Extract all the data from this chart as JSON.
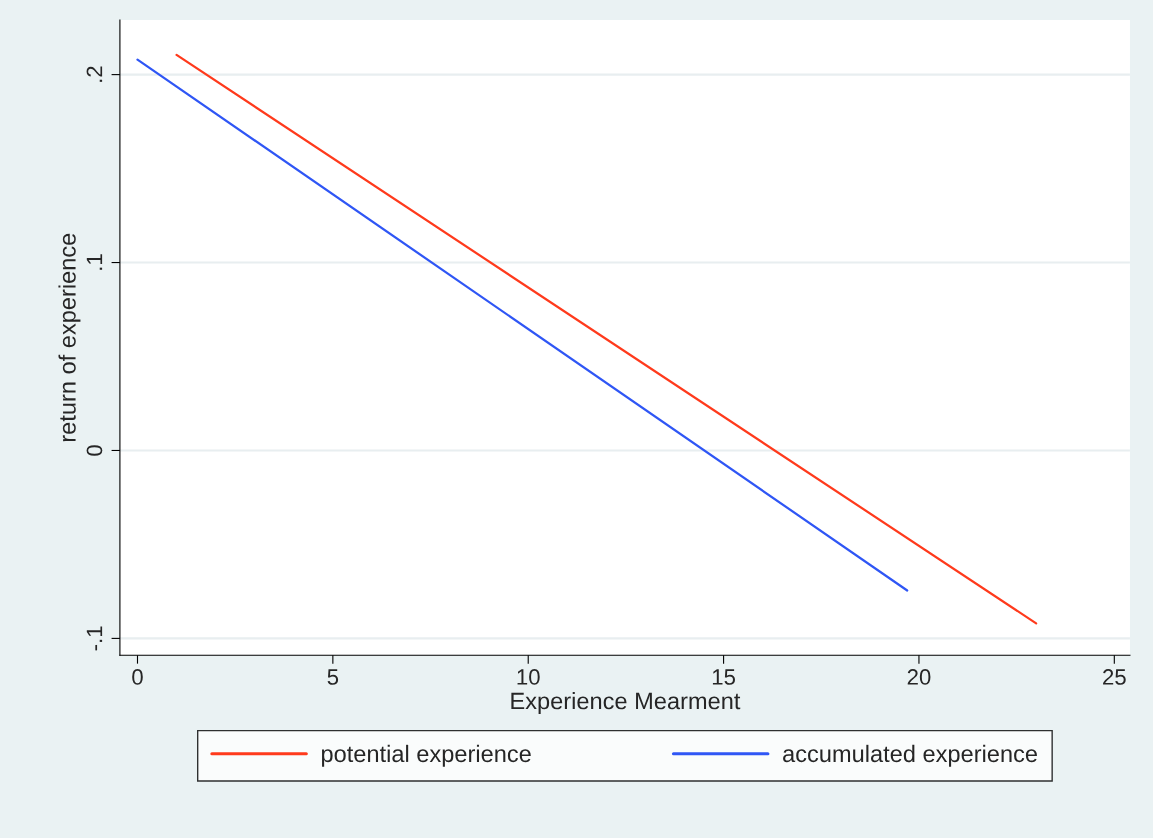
{
  "chart_data": {
    "type": "line",
    "xlabel": "Experience Mearment",
    "ylabel": "return of experience",
    "series": [
      {
        "name": "potential experience",
        "color": "#ff3a1c",
        "x": [
          1,
          23
        ],
        "values": [
          0.2105,
          -0.092
        ]
      },
      {
        "name": "accumulated experience",
        "color": "#2f56f5",
        "x": [
          0,
          19.7
        ],
        "values": [
          0.208,
          -0.0745
        ]
      }
    ],
    "xlim": [
      -0.45,
      25.4
    ],
    "ylim": [
      -0.109,
      0.229
    ],
    "xticks": [
      0,
      5,
      10,
      15,
      20,
      25
    ],
    "yticks": [
      {
        "value": -0.1,
        "label": "-.1"
      },
      {
        "value": 0,
        "label": "0"
      },
      {
        "value": 0.1,
        "label": ".1"
      },
      {
        "value": 0.2,
        "label": ".2"
      }
    ],
    "grid": "y",
    "legend": "bottom",
    "line_style": "solid",
    "marker": "none"
  }
}
